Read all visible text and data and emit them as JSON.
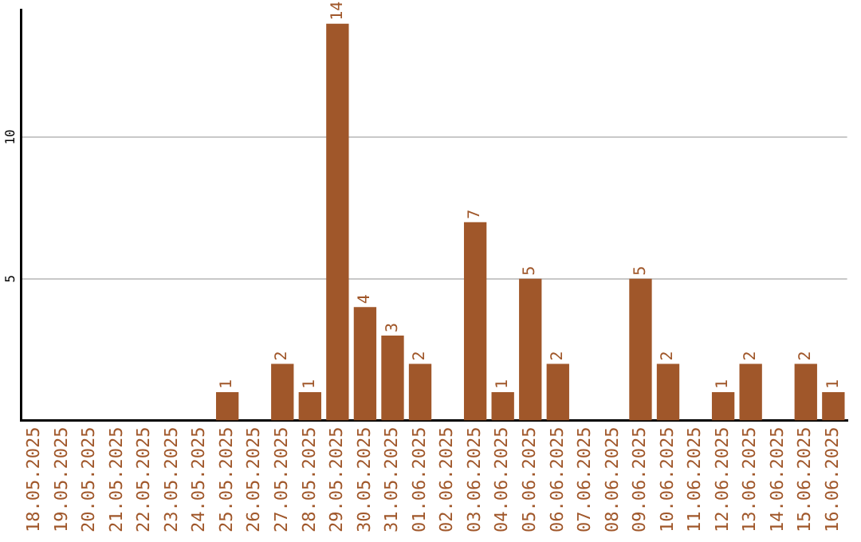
{
  "chart_data": {
    "type": "bar",
    "categories": [
      "18.05.2025",
      "19.05.2025",
      "20.05.2025",
      "21.05.2025",
      "22.05.2025",
      "23.05.2025",
      "24.05.2025",
      "25.05.2025",
      "26.05.2025",
      "27.05.2025",
      "28.05.2025",
      "29.05.2025",
      "30.05.2025",
      "31.05.2025",
      "01.06.2025",
      "02.06.2025",
      "03.06.2025",
      "04.06.2025",
      "05.06.2025",
      "06.06.2025",
      "07.06.2025",
      "08.06.2025",
      "09.06.2025",
      "10.06.2025",
      "11.06.2025",
      "12.06.2025",
      "13.06.2025",
      "14.06.2025",
      "15.06.2025",
      "16.06.2025"
    ],
    "values": [
      0,
      0,
      0,
      0,
      0,
      0,
      0,
      1,
      0,
      2,
      1,
      14,
      4,
      3,
      2,
      0,
      7,
      1,
      5,
      2,
      0,
      0,
      5,
      2,
      0,
      1,
      2,
      0,
      2,
      1
    ],
    "value_labels": [
      null,
      null,
      null,
      null,
      null,
      null,
      null,
      "1",
      null,
      "2",
      "1",
      "14",
      "4",
      "3",
      "2",
      null,
      "7",
      "1",
      "5",
      "2",
      null,
      null,
      "5",
      "2",
      null,
      "1",
      "2",
      null,
      "2",
      "1"
    ],
    "color": "#a0572a",
    "ylim": [
      0,
      14.5
    ],
    "yticks": [
      5,
      10
    ],
    "grid": "y",
    "legend": false
  }
}
